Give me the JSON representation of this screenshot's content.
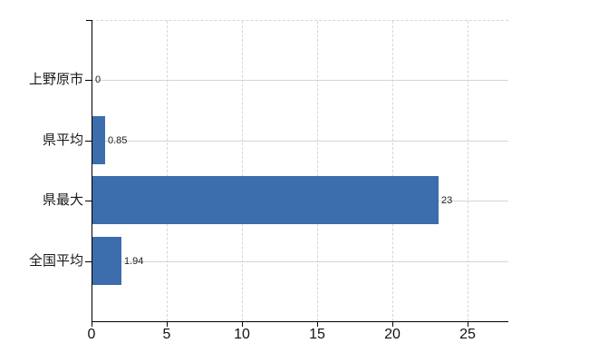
{
  "chart_data": {
    "type": "bar",
    "orientation": "horizontal",
    "title": "",
    "xlabel": "",
    "ylabel": "",
    "categories": [
      "上野原市",
      "県平均",
      "県最大",
      "全国平均"
    ],
    "values": [
      0,
      0.85,
      23,
      1.94
    ],
    "value_labels": [
      "0",
      "0.85",
      "23",
      "1.94"
    ],
    "x_ticks": [
      0,
      5,
      10,
      15,
      20,
      25
    ],
    "xlim": [
      0,
      27.71
    ],
    "grid": true,
    "legend_position": "none",
    "bar_color": "#3c6dac",
    "axis_color": "#000000",
    "h_grid_color": "#d2d8d0",
    "v_grid_color": "#d9d5da",
    "top_border_color": "#d9d5da",
    "text_color": "#1a1a1a"
  }
}
